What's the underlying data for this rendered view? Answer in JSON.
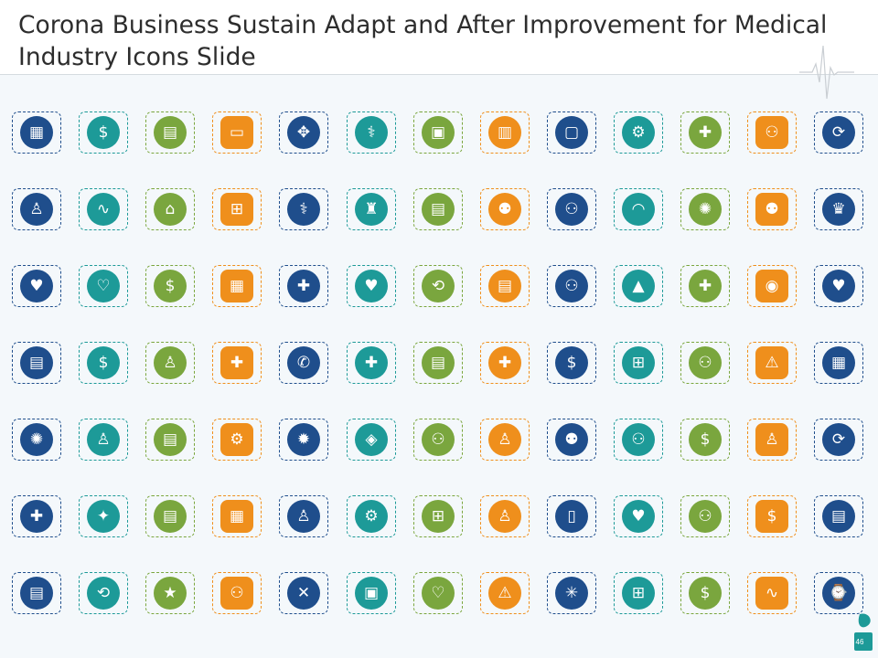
{
  "slide": {
    "title": "Corona Business Sustain Adapt and After Improvement for Medical Industry Icons Slide",
    "page_number": "46"
  },
  "colors": {
    "blue": "#1f4e8c",
    "teal": "#1d9a98",
    "green": "#7aa63e",
    "orange": "#ef8f1c",
    "title_text": "#2d2d2d",
    "background": "#f4f8fb"
  },
  "icon_rows": [
    [
      {
        "name": "hospital-building-icon",
        "color": "blue",
        "glyph": "▦"
      },
      {
        "name": "money-bags-icon",
        "color": "teal",
        "glyph": "$"
      },
      {
        "name": "cash-notes-icon",
        "color": "green",
        "glyph": "▤"
      },
      {
        "name": "browser-window-icon",
        "color": "orange",
        "glyph": "▭"
      },
      {
        "name": "focus-target-icon",
        "color": "blue",
        "glyph": "✥"
      },
      {
        "name": "doctor-consult-icon",
        "color": "teal",
        "glyph": "⚕"
      },
      {
        "name": "clipboard-icon",
        "color": "green",
        "glyph": "▣"
      },
      {
        "name": "monitor-dashboard-icon",
        "color": "orange",
        "glyph": "▥"
      },
      {
        "name": "video-call-icon",
        "color": "blue",
        "glyph": "▢"
      },
      {
        "name": "gear-search-icon",
        "color": "teal",
        "glyph": "⚙"
      },
      {
        "name": "medical-kit-hand-icon",
        "color": "green",
        "glyph": "✚"
      },
      {
        "name": "team-network-icon",
        "color": "orange",
        "glyph": "⚇"
      },
      {
        "name": "dollar-cycle-icon",
        "color": "blue",
        "glyph": "⟳"
      }
    ],
    [
      {
        "name": "person-dollar-chart-icon",
        "color": "blue",
        "glyph": "♙"
      },
      {
        "name": "heartbeat-monitor-icon",
        "color": "teal",
        "glyph": "∿"
      },
      {
        "name": "gear-building-icon",
        "color": "green",
        "glyph": "⌂"
      },
      {
        "name": "patient-bed-icon",
        "color": "orange",
        "glyph": "⊞"
      },
      {
        "name": "online-doctor-icon",
        "color": "blue",
        "glyph": "⚕"
      },
      {
        "name": "hospital-bed-icon",
        "color": "teal",
        "glyph": "♜"
      },
      {
        "name": "computer-chart-icon",
        "color": "green",
        "glyph": "▤"
      },
      {
        "name": "family-group-icon",
        "color": "orange",
        "glyph": "⚉"
      },
      {
        "name": "people-circle-icon",
        "color": "blue",
        "glyph": "⚇"
      },
      {
        "name": "face-mask-icon",
        "color": "teal",
        "glyph": "◠"
      },
      {
        "name": "virus-hand-icon",
        "color": "green",
        "glyph": "✺"
      },
      {
        "name": "crowd-group-icon",
        "color": "orange",
        "glyph": "⚉"
      },
      {
        "name": "doctors-pair-icon",
        "color": "blue",
        "glyph": "♛"
      }
    ],
    [
      {
        "name": "heart-care-icon",
        "color": "blue",
        "glyph": "♥"
      },
      {
        "name": "heart-handshake-icon",
        "color": "teal",
        "glyph": "♡"
      },
      {
        "name": "money-bag-icon",
        "color": "green",
        "glyph": "$"
      },
      {
        "name": "hospital-icon",
        "color": "orange",
        "glyph": "▦"
      },
      {
        "name": "medical-gear-icon",
        "color": "blue",
        "glyph": "✚"
      },
      {
        "name": "heart-hand-icon",
        "color": "teal",
        "glyph": "♥"
      },
      {
        "name": "person-cycle-icon",
        "color": "green",
        "glyph": "⟲"
      },
      {
        "name": "medical-report-icon",
        "color": "orange",
        "glyph": "▤"
      },
      {
        "name": "team-meeting-icon",
        "color": "blue",
        "glyph": "⚇"
      },
      {
        "name": "growth-chart-icon",
        "color": "teal",
        "glyph": "▲"
      },
      {
        "name": "ambulance-icon",
        "color": "green",
        "glyph": "✚"
      },
      {
        "name": "pill-signal-icon",
        "color": "orange",
        "glyph": "◉"
      },
      {
        "name": "heart-icon",
        "color": "blue",
        "glyph": "♥"
      }
    ],
    [
      {
        "name": "medical-checklist-icon",
        "color": "blue",
        "glyph": "▤"
      },
      {
        "name": "dollar-hand-icon",
        "color": "teal",
        "glyph": "$"
      },
      {
        "name": "standing-person-icon",
        "color": "green",
        "glyph": "♙"
      },
      {
        "name": "medical-hands-icon",
        "color": "orange",
        "glyph": "✚"
      },
      {
        "name": "doctor-phone-icon",
        "color": "blue",
        "glyph": "✆"
      },
      {
        "name": "medical-case-icon",
        "color": "teal",
        "glyph": "✚"
      },
      {
        "name": "document-list-icon",
        "color": "green",
        "glyph": "▤"
      },
      {
        "name": "patient-care-icon",
        "color": "orange",
        "glyph": "✚"
      },
      {
        "name": "money-network-icon",
        "color": "blue",
        "glyph": "$"
      },
      {
        "name": "desk-workflow-icon",
        "color": "teal",
        "glyph": "⊞"
      },
      {
        "name": "hierarchy-people-icon",
        "color": "green",
        "glyph": "⚇"
      },
      {
        "name": "warning-icon",
        "color": "orange",
        "glyph": "⚠"
      },
      {
        "name": "hospital-building-alt-icon",
        "color": "blue",
        "glyph": "▦"
      }
    ],
    [
      {
        "name": "virus-icon",
        "color": "blue",
        "glyph": "✺"
      },
      {
        "name": "doctor-mask-icon",
        "color": "teal",
        "glyph": "♙"
      },
      {
        "name": "building-document-icon",
        "color": "green",
        "glyph": "▤"
      },
      {
        "name": "dollar-gears-icon",
        "color": "orange",
        "glyph": "⚙"
      },
      {
        "name": "coronavirus-icon",
        "color": "blue",
        "glyph": "✹"
      },
      {
        "name": "diamond-cycle-icon",
        "color": "teal",
        "glyph": "◈"
      },
      {
        "name": "team-structure-icon",
        "color": "green",
        "glyph": "⚇"
      },
      {
        "name": "surgeon-icon",
        "color": "orange",
        "glyph": "♙"
      },
      {
        "name": "team-group-icon",
        "color": "blue",
        "glyph": "⚉"
      },
      {
        "name": "meeting-table-icon",
        "color": "teal",
        "glyph": "⚇"
      },
      {
        "name": "coins-stack-icon",
        "color": "green",
        "glyph": "$"
      },
      {
        "name": "doctor-stethoscope-icon",
        "color": "orange",
        "glyph": "♙"
      },
      {
        "name": "dollar-cycle-alt-icon",
        "color": "blue",
        "glyph": "⟳"
      }
    ],
    [
      {
        "name": "first-aid-kit-icon",
        "color": "blue",
        "glyph": "✚"
      },
      {
        "name": "idea-report-icon",
        "color": "teal",
        "glyph": "✦"
      },
      {
        "name": "clipboard-list-icon",
        "color": "green",
        "glyph": "▤"
      },
      {
        "name": "office-building-icon",
        "color": "orange",
        "glyph": "▦"
      },
      {
        "name": "doctor-avatar-icon",
        "color": "blue",
        "glyph": "♙"
      },
      {
        "name": "dollar-gear-icon",
        "color": "teal",
        "glyph": "⚙"
      },
      {
        "name": "workflow-chart-icon",
        "color": "green",
        "glyph": "⊞"
      },
      {
        "name": "person-luggage-icon",
        "color": "orange",
        "glyph": "♙"
      },
      {
        "name": "mobile-health-icon",
        "color": "blue",
        "glyph": "▯"
      },
      {
        "name": "heart-hands-icon",
        "color": "teal",
        "glyph": "♥"
      },
      {
        "name": "people-network-icon",
        "color": "green",
        "glyph": "⚇"
      },
      {
        "name": "money-growth-icon",
        "color": "orange",
        "glyph": "$"
      },
      {
        "name": "medical-notepad-icon",
        "color": "blue",
        "glyph": "▤"
      }
    ],
    [
      {
        "name": "report-document-icon",
        "color": "blue",
        "glyph": "▤"
      },
      {
        "name": "process-flow-icon",
        "color": "teal",
        "glyph": "⟲"
      },
      {
        "name": "rating-group-icon",
        "color": "green",
        "glyph": "★"
      },
      {
        "name": "team-connect-icon",
        "color": "orange",
        "glyph": "⚇"
      },
      {
        "name": "heart-tools-icon",
        "color": "blue",
        "glyph": "✕"
      },
      {
        "name": "medicine-box-icon",
        "color": "teal",
        "glyph": "▣"
      },
      {
        "name": "heart-bandage-icon",
        "color": "green",
        "glyph": "♡"
      },
      {
        "name": "alert-triangle-icon",
        "color": "orange",
        "glyph": "⚠"
      },
      {
        "name": "network-hub-icon",
        "color": "blue",
        "glyph": "✳"
      },
      {
        "name": "organization-chart-icon",
        "color": "teal",
        "glyph": "⊞"
      },
      {
        "name": "cash-stack-icon",
        "color": "green",
        "glyph": "$"
      },
      {
        "name": "ecg-screen-icon",
        "color": "orange",
        "glyph": "∿"
      },
      {
        "name": "smartwatch-icon",
        "color": "blue",
        "glyph": "⌚"
      }
    ]
  ]
}
